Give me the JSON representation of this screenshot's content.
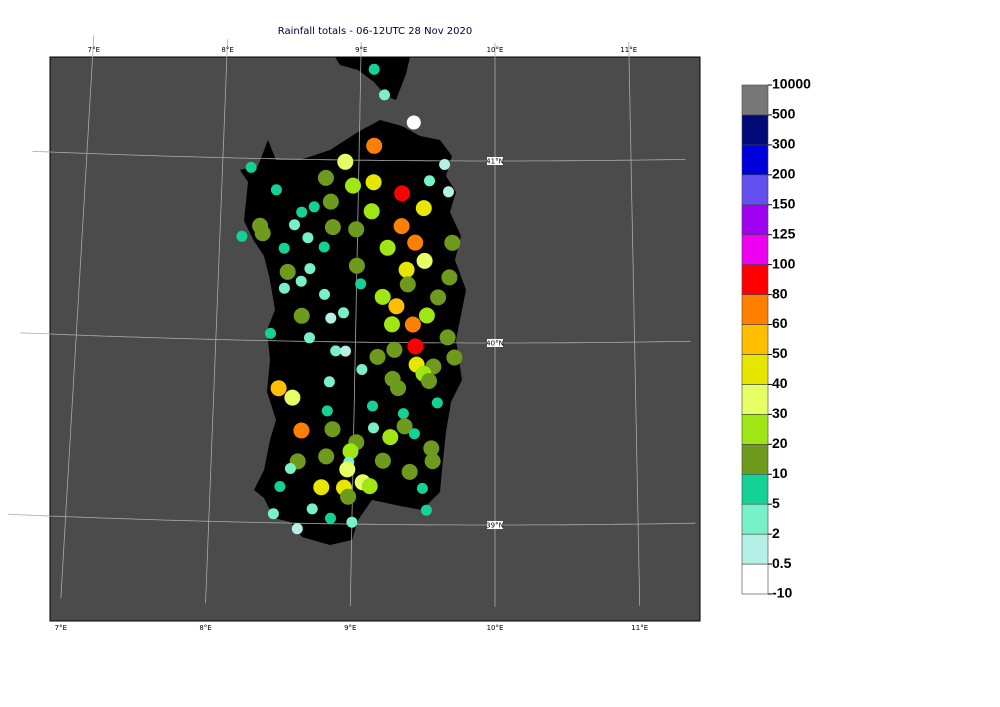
{
  "map": {
    "title": "Rainfall totals - 06-12UTC 28 Nov 2020",
    "lon_ticks": [
      {
        "value": 7,
        "label": "7°E"
      },
      {
        "value": 8,
        "label": "8°E"
      },
      {
        "value": 9,
        "label": "9°E"
      },
      {
        "value": 10,
        "label": "10°E"
      },
      {
        "value": 11,
        "label": "11°E"
      }
    ],
    "lat_ticks": [
      {
        "value": 39,
        "label": "39°N"
      },
      {
        "value": 40,
        "label": "40°N"
      },
      {
        "value": 41,
        "label": "41°N"
      }
    ],
    "colorbar": {
      "levels": [
        -10,
        0.5,
        2,
        5,
        10,
        20,
        30,
        40,
        50,
        60,
        80,
        100,
        125,
        150,
        200,
        300,
        500,
        10000
      ],
      "colors": [
        "#ffffff",
        "#b4f0e6",
        "#78f0c8",
        "#14d296",
        "#6e9b1e",
        "#a0e614",
        "#e6ff64",
        "#e6e600",
        "#ffbe00",
        "#ff8000",
        "#ff0000",
        "#f000f0",
        "#a000f0",
        "#6450f0",
        "#0000dc",
        "#000a78",
        "#787878"
      ]
    },
    "stations": [
      [
        9.1,
        41.5,
        7
      ],
      [
        9.18,
        41.36,
        3
      ],
      [
        9.4,
        41.21,
        0
      ],
      [
        9.11,
        41.08,
        70
      ],
      [
        8.9,
        40.99,
        35
      ],
      [
        9.63,
        40.98,
        1
      ],
      [
        8.21,
        40.95,
        7
      ],
      [
        8.76,
        40.9,
        15
      ],
      [
        8.96,
        40.86,
        25
      ],
      [
        9.11,
        40.88,
        45
      ],
      [
        9.52,
        40.89,
        3
      ],
      [
        9.32,
        40.82,
        90
      ],
      [
        9.66,
        40.83,
        1
      ],
      [
        8.4,
        40.83,
        7
      ],
      [
        8.8,
        40.77,
        15
      ],
      [
        9.48,
        40.74,
        45
      ],
      [
        8.68,
        40.74,
        7
      ],
      [
        8.59,
        40.71,
        7
      ],
      [
        9.1,
        40.72,
        25
      ],
      [
        8.54,
        40.64,
        3
      ],
      [
        8.29,
        40.63,
        15
      ],
      [
        8.82,
        40.63,
        15
      ],
      [
        8.99,
        40.62,
        15
      ],
      [
        9.32,
        40.64,
        70
      ],
      [
        8.31,
        40.59,
        15
      ],
      [
        8.64,
        40.57,
        3
      ],
      [
        8.16,
        40.57,
        7
      ],
      [
        9.69,
        40.55,
        15
      ],
      [
        9.42,
        40.55,
        70
      ],
      [
        8.47,
        40.51,
        7
      ],
      [
        8.76,
        40.52,
        7
      ],
      [
        9.22,
        40.52,
        25
      ],
      [
        9.49,
        40.45,
        35
      ],
      [
        9.0,
        40.42,
        15
      ],
      [
        9.36,
        40.4,
        45
      ],
      [
        8.5,
        40.38,
        15
      ],
      [
        8.66,
        40.4,
        3
      ],
      [
        9.67,
        40.36,
        15
      ],
      [
        8.6,
        40.33,
        3
      ],
      [
        9.03,
        40.32,
        7
      ],
      [
        9.37,
        40.32,
        15
      ],
      [
        8.48,
        40.29,
        3
      ],
      [
        8.77,
        40.26,
        3
      ],
      [
        9.19,
        40.25,
        25
      ],
      [
        9.59,
        40.25,
        15
      ],
      [
        9.29,
        40.2,
        55
      ],
      [
        8.61,
        40.14,
        15
      ],
      [
        8.91,
        40.16,
        3
      ],
      [
        8.82,
        40.13,
        1
      ],
      [
        9.51,
        40.15,
        25
      ],
      [
        9.26,
        40.1,
        25
      ],
      [
        9.41,
        40.1,
        70
      ],
      [
        8.39,
        40.04,
        7
      ],
      [
        8.67,
        40.02,
        3
      ],
      [
        9.66,
        40.03,
        15
      ],
      [
        8.86,
        39.95,
        3
      ],
      [
        8.93,
        39.95,
        1
      ],
      [
        9.43,
        39.98,
        90
      ],
      [
        9.28,
        39.96,
        15
      ],
      [
        9.16,
        39.92,
        15
      ],
      [
        9.71,
        39.92,
        15
      ],
      [
        9.56,
        39.87,
        15
      ],
      [
        9.44,
        39.88,
        45
      ],
      [
        9.05,
        39.85,
        3
      ],
      [
        9.49,
        39.83,
        25
      ],
      [
        9.27,
        39.8,
        15
      ],
      [
        9.53,
        39.79,
        15
      ],
      [
        8.82,
        39.78,
        3
      ],
      [
        8.46,
        39.74,
        55
      ],
      [
        9.31,
        39.75,
        15
      ],
      [
        8.56,
        39.69,
        35
      ],
      [
        9.59,
        39.67,
        7
      ],
      [
        9.13,
        39.65,
        7
      ],
      [
        8.81,
        39.62,
        7
      ],
      [
        9.35,
        39.61,
        7
      ],
      [
        9.36,
        39.54,
        15
      ],
      [
        8.85,
        39.52,
        15
      ],
      [
        9.14,
        39.53,
        3
      ],
      [
        9.26,
        39.48,
        25
      ],
      [
        8.63,
        39.51,
        70
      ],
      [
        9.43,
        39.5,
        7
      ],
      [
        9.02,
        39.45,
        15
      ],
      [
        9.55,
        39.42,
        15
      ],
      [
        8.81,
        39.37,
        15
      ],
      [
        8.98,
        39.4,
        25
      ],
      [
        9.21,
        39.35,
        15
      ],
      [
        8.61,
        39.34,
        15
      ],
      [
        8.97,
        39.34,
        3
      ],
      [
        9.56,
        39.35,
        15
      ],
      [
        8.56,
        39.3,
        3
      ],
      [
        9.4,
        39.29,
        15
      ],
      [
        8.96,
        39.3,
        35
      ],
      [
        9.07,
        39.23,
        35
      ],
      [
        9.12,
        39.21,
        25
      ],
      [
        8.78,
        39.2,
        45
      ],
      [
        8.94,
        39.2,
        45
      ],
      [
        8.49,
        39.2,
        7
      ],
      [
        9.49,
        39.2,
        7
      ],
      [
        8.97,
        39.15,
        15
      ],
      [
        8.72,
        39.08,
        3
      ],
      [
        9.52,
        39.08,
        7
      ],
      [
        8.45,
        39.05,
        3
      ],
      [
        8.85,
        39.03,
        7
      ],
      [
        9.0,
        39.01,
        3
      ],
      [
        8.62,
        38.97,
        1
      ]
    ]
  }
}
